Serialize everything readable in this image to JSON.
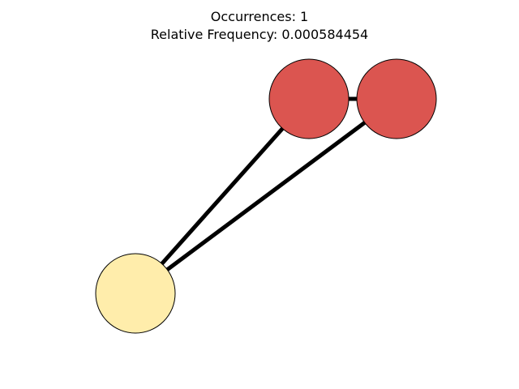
{
  "title": {
    "occurrences": "Occurrences: 1",
    "relative_frequency": "Relative Frequency: 0.000584454"
  },
  "graph": {
    "nodes": [
      {
        "id": "n1",
        "color": "#db5550"
      },
      {
        "id": "n2",
        "color": "#db5550"
      },
      {
        "id": "n3",
        "color": "#ffedab"
      }
    ],
    "edges": [
      {
        "source": "n1",
        "target": "n2"
      },
      {
        "source": "n1",
        "target": "n3"
      },
      {
        "source": "n2",
        "target": "n3"
      }
    ],
    "edge_color": "#000000",
    "node_border_color": "#000000"
  }
}
